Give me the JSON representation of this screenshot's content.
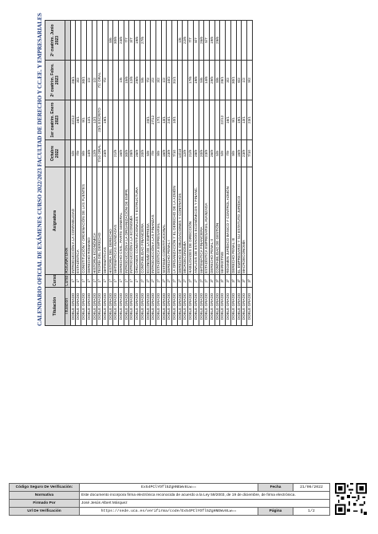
{
  "title": "CALENDARIO OFICIAL DE EXÁMENES CURSO 2022/2023 FACULTAD DE DERECHO Y CC.EE. Y EMPRESARIALES",
  "columns": [
    "Titulación",
    "Curso",
    "Asignatura",
    "Octubre 2022",
    "1er cuatrim. Enero 2023",
    "2º cuatrim. Febre. 2023",
    "2º cuatrim. Junio 2023"
  ],
  "subheader": {
    "titulacion": "Titulación",
    "curso": "Curso",
    "asignatura": "ASIGNATURA"
  },
  "rows": [
    [
      "DOBLE GRADO",
      "1º",
      "INTRODUCCIÓN A LA CONTABILIDAD",
      "5/9",
      "22/12",
      "26/1",
      ""
    ],
    [
      "DOBLE GRADO",
      "1º",
      "ESTADÍSTICA",
      "7/9",
      "16/1",
      "3/2",
      ""
    ],
    [
      "DOBLE GRADO",
      "1º",
      "CONSTITUCIÓN Y ORDENACIÓN DE LAS FUENTES",
      "9/9",
      "9/1",
      "30/1",
      ""
    ],
    [
      "DOBLE GRADO",
      "1º",
      "DERECHO ROMANO",
      "14/9",
      "12/1",
      "1/2",
      ""
    ],
    [
      "DOBLE GRADO",
      "1º",
      "HISTORIA ECONÓMICA",
      "12/9",
      "12/1",
      "1/2",
      ""
    ],
    [
      "DOBLE GRADO",
      "1º",
      "TEORÍA DEL DERECHO",
      "7/10 ORAL",
      "23/1 ESCRITO",
      "7/2 ORAL",
      ""
    ],
    [
      "DOBLE GRADO",
      "1º",
      "MATEMÁTICAS",
      "23/9",
      "19/1",
      "7/2",
      ""
    ],
    [
      "DOBLE GRADO",
      "1º",
      "HISTORIA DEL DERECHO",
      "",
      "",
      "",
      "8/6"
    ],
    [
      "DOBLE GRADO",
      "1º",
      "MATEMÁTICAS AVANZADAS",
      "21/9",
      "",
      "",
      "30/6"
    ],
    [
      "DOBLE GRADO",
      "1º",
      "DERECHO CIVIL. PARTE GENERAL",
      "16/9",
      "",
      "1/6",
      "23/6"
    ],
    [
      "DOBLE GRADO",
      "1º",
      "INTRODUCCIÓN A LA ORGANIZACIÓN DE EMPR.",
      "30/9",
      "",
      "15/6",
      "7/7"
    ],
    [
      "DOBLE GRADO",
      "1º",
      "INTRODUCCIÓN A LA ECONOMÍA",
      "28/9",
      "",
      "12/6",
      "3/7"
    ],
    [
      "DOBLE GRADO",
      "1º",
      "ÓRGANOS CONSTITUCIONALES Y ESTRUCTURA",
      "26/9",
      "",
      "29/5",
      "19/6"
    ],
    [
      "DOBLE GRADO",
      "2º",
      "CONTABILIDAD FINANCIERA",
      "20/9",
      "",
      "5/6",
      "27/6"
    ],
    [
      "DOBLE GRADO",
      "2º",
      "ECONOMÍA DE LA EMPRESA",
      "5/9",
      "20/1",
      "7/2",
      ""
    ],
    [
      "DOBLE GRADO",
      "2º",
      "INTRODUCCIÓN A LAS FINANZAS",
      "7/9",
      "27/12",
      "2/2",
      ""
    ],
    [
      "DOBLE GRADO",
      "2º",
      "ESTADÍSTICA EMPRESARIAL",
      "9/9",
      "17/1",
      "3/2",
      ""
    ],
    [
      "DOBLE GRADO",
      "2º",
      "SISTEMA CONSTITUCIONAL",
      "16/9",
      "13/1",
      "1/2",
      ""
    ],
    [
      "DOBLE GRADO",
      "2º",
      "DERECHO PENAL I",
      "23/9",
      "24/1",
      "10/2",
      ""
    ],
    [
      "DOBLE GRADO",
      "2º",
      "LA ORGANIZACIÓN Y EL DERECHO DE LA ADMÓN",
      "7/10",
      "10/1",
      "31/1",
      ""
    ],
    [
      "DOBLE GRADO",
      "2º",
      "DERECHO DE OBLIGACIONES Y CONTRATOS",
      "14/10",
      "",
      "",
      "1/6"
    ],
    [
      "DOBLE GRADO",
      "2º",
      "MICROECONOMÍA",
      "12/9",
      "",
      "",
      "22/6"
    ],
    [
      "DOBLE GRADO",
      "2º",
      "HABILIDADES DE DIRECCIÓN",
      "21/9",
      "",
      "17/6",
      "7/7"
    ],
    [
      "DOBLE GRADO",
      "2º",
      "ANÁLISIS DE ESTADOS ECONÓMICOS Y FINANC.",
      "28/9",
      "",
      "19/6",
      "8/7"
    ],
    [
      "DOBLE GRADO",
      "2º",
      "MATEMÁTICA FINANCIERA",
      "20/9",
      "",
      "5/6",
      "26/6"
    ],
    [
      "DOBLE GRADO",
      "2º",
      "ESTADÍSTICA EMPRESARIAL AVANZADA",
      "23/9",
      "",
      "14/6",
      "5/7"
    ],
    [
      "DOBLE GRADO",
      "3º",
      "DERECHO PENAL II",
      "26/9",
      "",
      "29/5",
      "19/6"
    ],
    [
      "DOBLE GRADO",
      "3º",
      "CONTABILIDAD DE GESTIÓN",
      "5/9",
      "",
      "8/6",
      "29/6"
    ],
    [
      "DOBLE GRADO",
      "3º",
      "MARKETING",
      "5/9",
      "22/12",
      "26/1",
      ""
    ],
    [
      "DOBLE GRADO",
      "3º",
      "RÉGIMEN JURÍDICO BÁSICO Y CONTROL ADMÓN",
      "7/9",
      "16/1",
      "3/2",
      ""
    ],
    [
      "DOBLE GRADO",
      "3º",
      "DERECHO PENAL III",
      "9/9",
      "9/1",
      "30/1",
      ""
    ],
    [
      "DOBLE GRADO",
      "3º",
      "EL EMPRESARIO Y SU ESTATUTO JURÍDICO",
      "16/9",
      "19/1",
      "6/2",
      ""
    ],
    [
      "DOBLE GRADO",
      "3º",
      "MACROECONOMÍA",
      "23/9",
      "13/1",
      "1/2",
      ""
    ],
    [
      "DOBLE GRADO",
      "3º",
      "",
      "7/10",
      "23/1",
      "9/2",
      ""
    ]
  ],
  "footer": {
    "code_label": "Código Seguro De Verificación:",
    "code_value": "Ex54PClYOfl5ZgHNEWv8Lw==",
    "fecha_label": "Fecha",
    "fecha_value": "21/06/2022",
    "normativa_label": "Normativa",
    "normativa_value": "Este documento incorpora firma electrónica reconocida de acuerdo a la Ley 59/2003, de 19 de diciembre, de firma electrónica.",
    "firmado_label": "Firmado Por",
    "firmado_value": "José Jesús Albert Márquez",
    "url_label": "Url De Verificación",
    "url_value": "https://sede.uca.es/verifirma/code/Ex54PClYOfl5ZgHNEWv8Lw==",
    "pagina_label": "Página",
    "pagina_value": "1/2"
  }
}
